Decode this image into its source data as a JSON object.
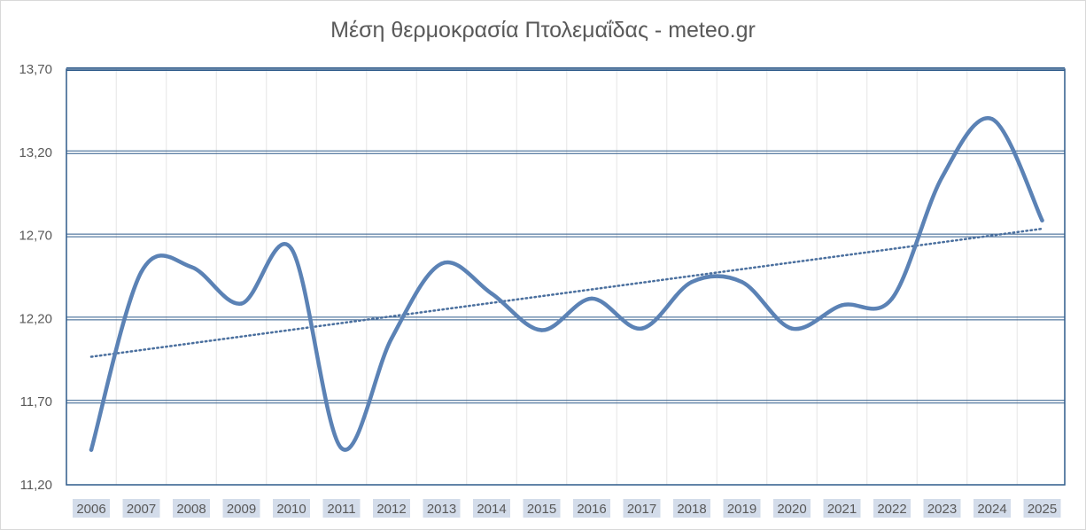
{
  "chart_data": {
    "type": "line",
    "title": "Μέση θερμοκρασία Πτολεμαΐδας - meteo.gr",
    "xlabel": "",
    "ylabel": "",
    "categories": [
      "2006",
      "2007",
      "2008",
      "2009",
      "2010",
      "2011",
      "2012",
      "2013",
      "2014",
      "2015",
      "2016",
      "2017",
      "2018",
      "2019",
      "2020",
      "2021",
      "2022",
      "2023",
      "2024",
      "2025"
    ],
    "series": [
      {
        "values": [
          11.41,
          12.48,
          12.51,
          12.29,
          12.62,
          11.42,
          12.08,
          12.53,
          12.35,
          12.13,
          12.32,
          12.14,
          12.42,
          12.42,
          12.14,
          12.28,
          12.32,
          13.05,
          13.4,
          12.79
        ]
      }
    ],
    "trendline": {
      "style": "dotted",
      "start": 11.97,
      "end": 12.74
    },
    "ylim": [
      11.2,
      13.7
    ],
    "yticks": [
      "11,20",
      "11,70",
      "12,20",
      "12,70",
      "13,20",
      "13,70"
    ],
    "ytick_values": [
      11.2,
      11.7,
      12.2,
      12.7,
      13.2,
      13.7
    ],
    "grid": true,
    "legend": "none",
    "colors": {
      "line": "#5b82b5",
      "trend": "#4a6f9e",
      "grid": "#2e5a8a",
      "vgrid": "#e6e6e6",
      "xtick_bg": "#d3dcea"
    }
  }
}
